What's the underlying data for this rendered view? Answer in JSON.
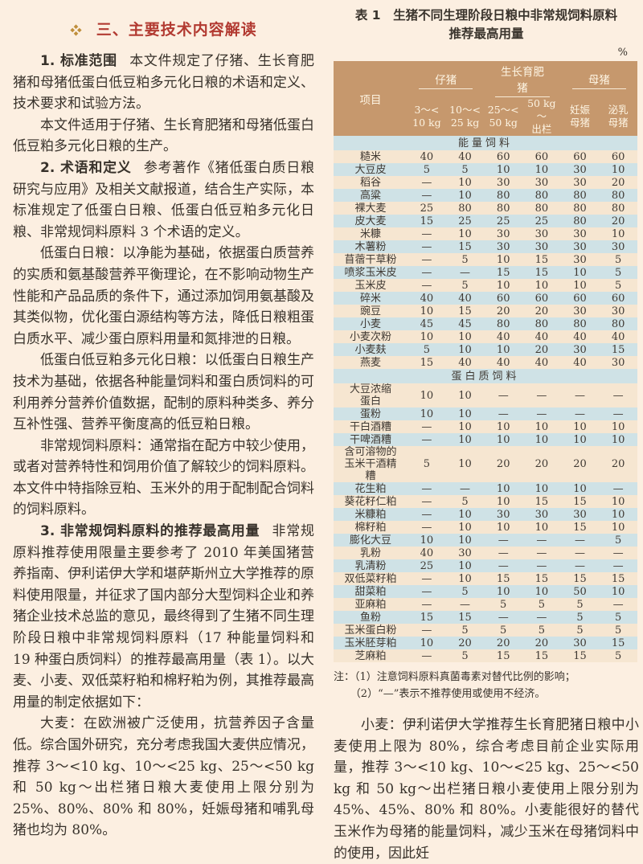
{
  "left_column": {
    "heading": {
      "icon": "diamond-cluster",
      "text": "三、主要技术内容解读"
    },
    "paragraphs": [
      {
        "lead": "1. 标准范围",
        "body": "本文件规定了仔猪、生长育肥猪和母猪低蛋白低豆粕多元化日粮的术语和定义、技术要求和试验方法。"
      },
      {
        "lead": "",
        "body": "本文件适用于仔猪、生长育肥猪和母猪低蛋白低豆粕多元化日粮的生产。"
      },
      {
        "lead": "2. 术语和定义",
        "body": "参考著作《猪低蛋白质日粮研究与应用》及相关文献报道，结合生产实际，本标准规定了低蛋白日粮、低蛋白低豆粕多元化日粮、非常规饲料原料 3 个术语的定义。"
      },
      {
        "lead": "",
        "body": "低蛋白日粮：以净能为基础，依据蛋白质营养的实质和氨基酸营养平衡理论，在不影响动物生产性能和产品品质的条件下，通过添加饲用氨基酸及其类似物，优化蛋白源结构等方法，降低日粮粗蛋白质水平、减少蛋白原料用量和氮排泄的日粮。"
      },
      {
        "lead": "",
        "body": "低蛋白低豆粕多元化日粮：以低蛋白日粮生产技术为基础，依据各种能量饲料和蛋白质饲料的可利用养分营养价值数据，配制的原料种类多、养分互补性强、营养平衡度高的低豆粕日粮。"
      },
      {
        "lead": "",
        "body": "非常规饲料原料：通常指在配方中较少使用，或者对营养特性和饲用价值了解较少的饲料原料。本文件中特指除豆粕、玉米外的用于配制配合饲料的饲料原料。"
      },
      {
        "lead": "3. 非常规饲料原料的推荐最高用量",
        "body": "非常规原料推荐使用限量主要参考了 2010 年美国猪营养指南、伊利诺伊大学和堪萨斯州立大学推荐的原料使用限量，并征求了国内部分大型饲料企业和养猪企业技术总监的意见，最终得到了生猪不同生理阶段日粮中非常规饲料原料（17 种能量饲料和 19 种蛋白质饲料）的推荐最高用量（表 1）。以大麦、小麦、双低菜籽粕和棉籽粕为例，其推荐最高用量的制定依据如下："
      },
      {
        "lead": "",
        "body": "大麦：在欧洲被广泛使用，抗营养因子含量低。综合国外研究，充分考虑我国大麦供应情况，推荐 3～<10 kg、10～<25 kg、25～<50 kg 和 50 kg～出栏猪日粮大麦使用上限分别为 25%、80%、80% 和 80%，妊娠母猪和哺乳母猪也均为 80%。"
      }
    ]
  },
  "right_column": {
    "table": {
      "title": "表 1　生猪不同生理阶段日粮中非常规饲料原料推荐最高用量",
      "unit": "%",
      "item_header": "项目",
      "groups": [
        {
          "label": "仔猪",
          "sub": [
            "3～<\n10 kg",
            "10～<\n25 kg"
          ]
        },
        {
          "label": "生长育肥猪",
          "sub": [
            "25～<\n50 kg",
            "50 kg～\n出栏"
          ]
        },
        {
          "label": "母猪",
          "sub": [
            "妊娠\n母猪",
            "泌乳\n母猪"
          ]
        }
      ],
      "sections": [
        {
          "name": "能量饲料",
          "rows": [
            {
              "item": "糙米",
              "values": [
                "40",
                "40",
                "60",
                "60",
                "60",
                "60"
              ]
            },
            {
              "item": "大豆皮",
              "values": [
                "5",
                "5",
                "10",
                "10",
                "30",
                "10"
              ]
            },
            {
              "item": "稻谷",
              "values": [
                "—",
                "10",
                "30",
                "30",
                "30",
                "20"
              ]
            },
            {
              "item": "高粱",
              "values": [
                "—",
                "10",
                "80",
                "80",
                "80",
                "80"
              ]
            },
            {
              "item": "裸大麦",
              "values": [
                "25",
                "80",
                "80",
                "80",
                "80",
                "80"
              ]
            },
            {
              "item": "皮大麦",
              "values": [
                "15",
                "25",
                "25",
                "25",
                "80",
                "20"
              ]
            },
            {
              "item": "米糠",
              "values": [
                "—",
                "10",
                "30",
                "30",
                "30",
                "10"
              ]
            },
            {
              "item": "木薯粉",
              "values": [
                "—",
                "15",
                "30",
                "30",
                "30",
                "30"
              ]
            },
            {
              "item": "苜蓿干草粉",
              "values": [
                "—",
                "5",
                "10",
                "15",
                "30",
                "5"
              ]
            },
            {
              "item": "喷浆玉米皮",
              "values": [
                "—",
                "—",
                "15",
                "15",
                "10",
                "5"
              ]
            },
            {
              "item": "玉米皮",
              "values": [
                "—",
                "5",
                "10",
                "10",
                "10",
                "5"
              ]
            },
            {
              "item": "碎米",
              "values": [
                "40",
                "40",
                "60",
                "60",
                "60",
                "60"
              ]
            },
            {
              "item": "豌豆",
              "values": [
                "10",
                "15",
                "20",
                "20",
                "30",
                "30"
              ]
            },
            {
              "item": "小麦",
              "values": [
                "45",
                "45",
                "80",
                "80",
                "80",
                "80"
              ]
            },
            {
              "item": "小麦次粉",
              "values": [
                "10",
                "10",
                "40",
                "40",
                "40",
                "40"
              ]
            },
            {
              "item": "小麦麸",
              "values": [
                "5",
                "10",
                "10",
                "20",
                "30",
                "15"
              ]
            },
            {
              "item": "燕麦",
              "values": [
                "15",
                "40",
                "40",
                "40",
                "40",
                "30"
              ]
            }
          ]
        },
        {
          "name": "蛋白质饲料",
          "rows": [
            {
              "item": "大豆浓缩\n蛋白",
              "values": [
                "10",
                "10",
                "—",
                "—",
                "—",
                "—"
              ]
            },
            {
              "item": "蛋粉",
              "values": [
                "10",
                "10",
                "—",
                "—",
                "—",
                "—"
              ]
            },
            {
              "item": "干白酒糟",
              "values": [
                "—",
                "10",
                "10",
                "10",
                "10",
                "10"
              ]
            },
            {
              "item": "干啤酒糟",
              "values": [
                "—",
                "10",
                "10",
                "10",
                "10",
                "10"
              ]
            },
            {
              "item": "含可溶物的\n玉米干酒精\n糟",
              "values": [
                "5",
                "10",
                "20",
                "20",
                "20",
                "20"
              ]
            },
            {
              "item": "花生粕",
              "values": [
                "—",
                "—",
                "10",
                "10",
                "10",
                "—"
              ]
            },
            {
              "item": "葵花籽仁粕",
              "values": [
                "—",
                "5",
                "10",
                "15",
                "15",
                "10"
              ]
            },
            {
              "item": "米糠粕",
              "values": [
                "—",
                "10",
                "30",
                "30",
                "30",
                "10"
              ]
            },
            {
              "item": "棉籽粕",
              "values": [
                "—",
                "10",
                "10",
                "10",
                "15",
                "10"
              ]
            },
            {
              "item": "膨化大豆",
              "values": [
                "10",
                "10",
                "—",
                "—",
                "—",
                "5"
              ]
            },
            {
              "item": "乳粉",
              "values": [
                "40",
                "30",
                "—",
                "—",
                "—",
                "—"
              ]
            },
            {
              "item": "乳清粉",
              "values": [
                "25",
                "10",
                "—",
                "—",
                "—",
                "—"
              ]
            },
            {
              "item": "双低菜籽粕",
              "values": [
                "—",
                "10",
                "15",
                "15",
                "15",
                "15"
              ]
            },
            {
              "item": "甜菜粕",
              "values": [
                "—",
                "5",
                "10",
                "10",
                "50",
                "10"
              ]
            },
            {
              "item": "亚麻粕",
              "values": [
                "—",
                "—",
                "5",
                "5",
                "5",
                "—"
              ]
            },
            {
              "item": "鱼粉",
              "values": [
                "15",
                "15",
                "—",
                "—",
                "5",
                "5"
              ]
            },
            {
              "item": "玉米蛋白粉",
              "values": [
                "—",
                "5",
                "5",
                "5",
                "5",
                "5"
              ]
            },
            {
              "item": "玉米胚芽粕",
              "values": [
                "10",
                "20",
                "20",
                "20",
                "30",
                "15"
              ]
            },
            {
              "item": "芝麻粕",
              "values": [
                "—",
                "5",
                "15",
                "15",
                "15",
                "5"
              ]
            }
          ]
        }
      ],
      "notes": [
        "注：（1）注意饲料原料真菌毒素对替代比例的影响；",
        "（2）“—”表示不推荐使用或使用不经济。"
      ]
    },
    "paragraph": {
      "lead": "",
      "body": "小麦：伊利诺伊大学推荐生长育肥猪日粮中小麦使用上限为 80%，综合考虑目前企业实际用量，推荐 3～<10 kg、10～<25 kg、25～<50 kg 和 50 kg～出栏猪日粮小麦使用上限分别为 45%、45%、80% 和 80%。小麦能很好的替代玉米作为母猪的能量饲料，减少玉米在母猪饲料中的使用，因此妊"
    }
  },
  "colors": {
    "page_bg": "#fcefe1",
    "heading_red": "#b23a31",
    "icon_gold": "#bf8e3a",
    "table_header_bg": "#c6986d",
    "table_header_text": "#fdf4e2",
    "row_cream": "#f6e6d1",
    "row_blue": "#cfe2e6"
  }
}
